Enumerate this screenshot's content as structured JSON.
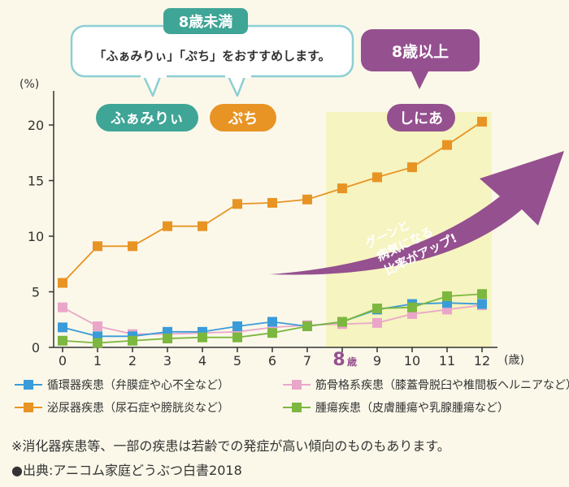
{
  "chart_data": {
    "type": "line",
    "ylabel": "(%)",
    "xlabel": "(歳)",
    "ylim": [
      0,
      22
    ],
    "yticks": [
      0,
      5,
      10,
      15,
      20
    ],
    "x": [
      "0",
      "1",
      "2",
      "3",
      "4",
      "5",
      "6",
      "7",
      "8",
      "9",
      "10",
      "11",
      "12"
    ],
    "x_highlight_label": "8",
    "x_highlight_suffix": "歳",
    "series": [
      {
        "name": "循環器疾患（弁膜症や心不全など）",
        "color": "#3a9bd9",
        "values": [
          1.8,
          1.0,
          1.0,
          1.4,
          1.4,
          1.9,
          2.3,
          1.9,
          2.3,
          3.4,
          3.9,
          4.0,
          3.9
        ]
      },
      {
        "name": "筋骨格系疾患（膝蓋骨脱臼や椎間板ヘルニアなど）",
        "color": "#eaa6c9",
        "values": [
          3.6,
          1.9,
          1.2,
          1.2,
          1.3,
          1.4,
          1.8,
          2.0,
          2.1,
          2.2,
          3.0,
          3.4,
          3.8
        ]
      },
      {
        "name": "泌尿器疾患（尿石症や膀胱炎など）",
        "color": "#e89424",
        "values": [
          5.8,
          9.1,
          9.1,
          10.9,
          10.9,
          12.9,
          13.0,
          13.3,
          14.3,
          15.3,
          16.2,
          18.2,
          20.3
        ]
      },
      {
        "name": "腫瘍疾患（皮膚腫瘍や乳腺腫瘍など）",
        "color": "#7cb73f",
        "values": [
          0.6,
          0.4,
          0.6,
          0.8,
          0.9,
          0.9,
          1.3,
          1.9,
          2.3,
          3.5,
          3.6,
          4.6,
          4.8
        ]
      }
    ],
    "annotations": {
      "under8_title": "8歳未満",
      "under8_text": "「ふぁみりぃ」「ぷち」をおすすめします。",
      "over8_title": "8歳以上",
      "family": "ふぁみりぃ",
      "petit": "ぷち",
      "senior": "しにあ",
      "arrow_line1": "グーンと",
      "arrow_line2": "病気になる",
      "arrow_line3": "比率がアップ!"
    }
  },
  "colors": {
    "bg": "#fbf8ea",
    "highlight": "#f6f4c0",
    "teal": "#3fa596",
    "orange": "#e89424",
    "purple": "#95508f",
    "callout_border": "#8ccfd4",
    "axis": "#333333"
  },
  "footer": {
    "note": "※消化器疾患等、一部の疾患は若齢での発症が高い傾向のものもあります。",
    "source": "●出典:アニコム家庭どうぶつ白書2018"
  }
}
